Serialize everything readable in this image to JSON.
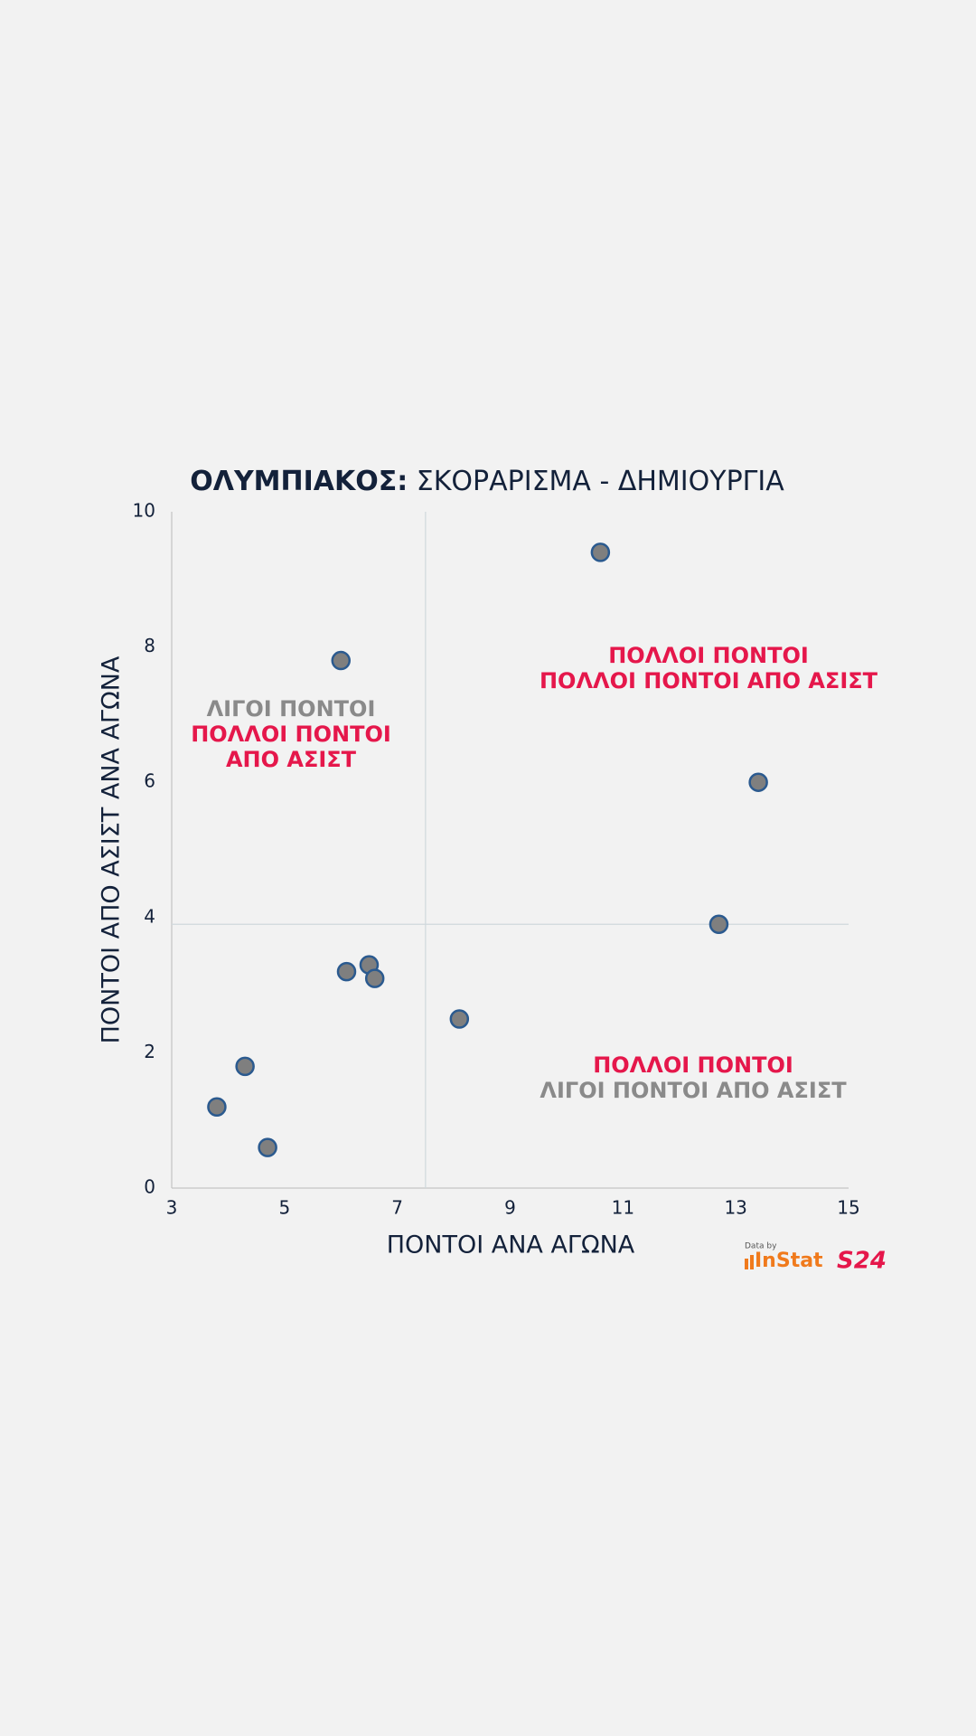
{
  "chart_data": {
    "type": "scatter",
    "title": {
      "bold": "ΟΛΥΜΠΙΑΚΟΣ:",
      "rest": " ΣΚΟΡΑΡΙΣΜΑ - ΔΗΜΙΟΥΡΓΙΑ"
    },
    "x_label": "ΠΟΝΤΟΙ ΑΝΑ ΑΓΩΝΑ",
    "y_label": "ΠΟΝΤΟΙ ΑΠΟ ΑΣΙΣΤ ΑΝΑ ΑΓΩΝΑ",
    "xlim": [
      3,
      15
    ],
    "ylim": [
      0,
      10
    ],
    "xticks": [
      3,
      5,
      7,
      9,
      11,
      13,
      15
    ],
    "yticks": [
      0,
      2,
      4,
      6,
      8,
      10
    ],
    "ref_lines": {
      "x": 7.5,
      "y": 3.9
    },
    "marker_color": "#7f7f7f",
    "marker_edge": "#2b5a8f",
    "x": [
      10.6,
      6.0,
      13.4,
      12.7,
      6.5,
      6.1,
      6.6,
      8.1,
      4.3,
      3.8,
      4.7
    ],
    "y": [
      9.4,
      7.8,
      6.0,
      3.9,
      3.3,
      3.2,
      3.1,
      2.5,
      1.8,
      1.2,
      0.6
    ],
    "annotations": [
      {
        "lines": [
          {
            "text": "ΛΙΓΟΙ ΠΟΝΤΟΙ",
            "color": "#8a8a8a"
          },
          {
            "text": "ΠΟΛΛΟΙ ΠΟΝΤΟΙ",
            "color": "#e5174b"
          },
          {
            "text": "ΑΠΟ ΑΣΙΣΤ",
            "color": "#e5174b"
          }
        ]
      },
      {
        "lines": [
          {
            "text": "ΠΟΛΛΟΙ ΠΟΝΤΟΙ",
            "color": "#e5174b"
          },
          {
            "text": "ΠΟΛΛΟΙ ΠΟΝΤΟΙ ΑΠΟ ΑΣΙΣΤ",
            "color": "#e5174b"
          }
        ]
      },
      {
        "lines": [
          {
            "text": "ΠΟΛΛΟΙ ΠΟΝΤΟΙ",
            "color": "#e5174b"
          },
          {
            "text": "ΛΙΓΟΙ ΠΟΝΤΟΙ ΑΠΟ ΑΣΙΣΤ",
            "color": "#8a8a8a"
          }
        ]
      }
    ],
    "logo": {
      "caption": "Data by",
      "brand": "InStat",
      "site": "S24"
    }
  }
}
